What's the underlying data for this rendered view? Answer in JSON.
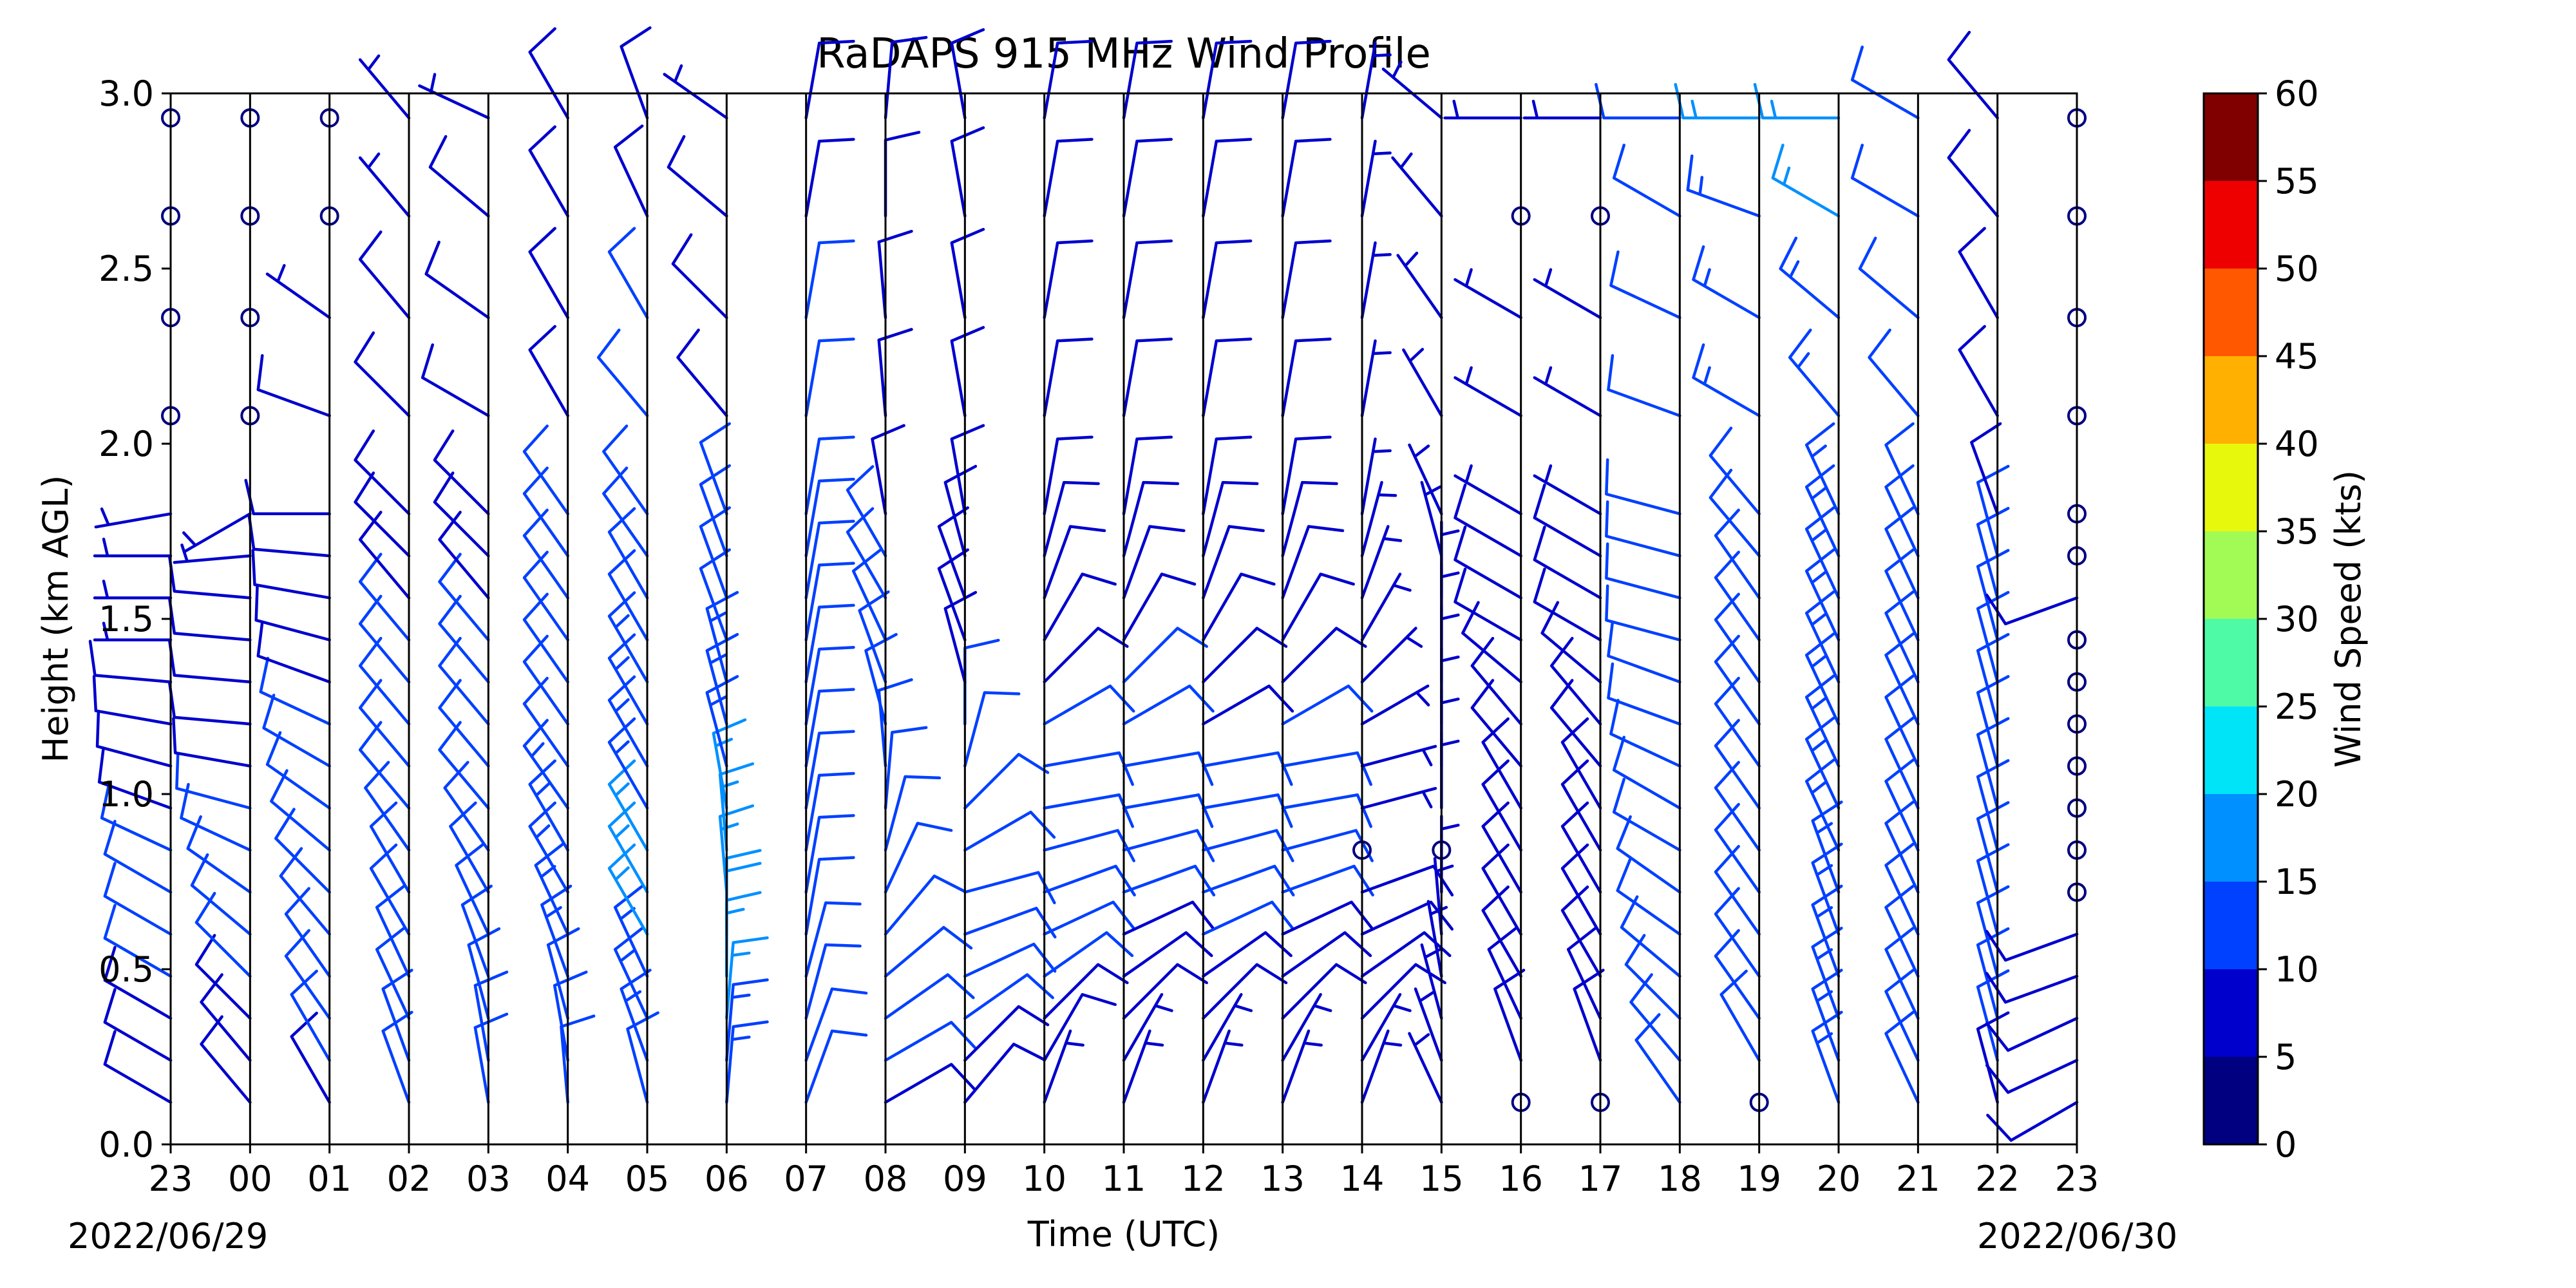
{
  "chart_data": {
    "type": "wind-barb-profile",
    "title": "RaDAPS 915 MHz Wind Profile",
    "xlabel": "Time (UTC)",
    "ylabel": "Height (km AGL)",
    "x_ticks": [
      "23",
      "00",
      "01",
      "02",
      "03",
      "04",
      "05",
      "06",
      "07",
      "08",
      "09",
      "10",
      "11",
      "12",
      "13",
      "14",
      "15",
      "16",
      "17",
      "18",
      "19",
      "20",
      "21",
      "22",
      "23"
    ],
    "start_date_label": "2022/06/29",
    "end_date_label": "2022/06/30",
    "ylim": [
      0,
      3.0
    ],
    "y_ticks": [
      "0.0",
      "0.5",
      "1.0",
      "1.5",
      "2.0",
      "2.5",
      "3.0"
    ],
    "colorbar": {
      "label": "Wind Speed (kts)",
      "bounds": [
        0,
        5,
        10,
        15,
        20,
        25,
        30,
        35,
        40,
        45,
        50,
        55,
        60
      ],
      "tick_labels": [
        "0",
        "5",
        "10",
        "15",
        "20",
        "25",
        "30",
        "35",
        "40",
        "45",
        "50",
        "55",
        "60"
      ],
      "colors": [
        "#000080",
        "#0000cd",
        "#0040ff",
        "#0090ff",
        "#00e4f8",
        "#4ffaa7",
        "#a2fb54",
        "#e8f80c",
        "#ffb000",
        "#ff5800",
        "#ee0000",
        "#800000"
      ]
    },
    "heights_km": [
      0.12,
      0.24,
      0.36,
      0.48,
      0.6,
      0.72,
      0.84,
      0.96,
      1.08,
      1.2,
      1.32,
      1.44,
      1.56,
      1.68,
      1.8,
      2.08,
      2.36,
      2.65,
      2.93
    ],
    "barb_series": [
      {
        "time": "23",
        "speed": [
          8,
          9,
          9,
          10,
          10,
          10,
          10,
          9,
          9,
          8,
          8,
          7,
          7,
          6,
          6,
          null,
          null,
          null,
          null
        ],
        "dir": [
          300,
          300,
          300,
          300,
          300,
          300,
          295,
          290,
          285,
          280,
          275,
          270,
          270,
          270,
          260,
          null,
          null,
          null,
          null
        ]
      },
      {
        "time": "00",
        "speed": [
          9,
          9,
          9,
          10,
          10,
          10,
          10,
          10,
          9,
          9,
          9,
          8,
          8,
          7,
          6,
          null,
          null,
          null,
          null
        ],
        "dir": [
          320,
          320,
          315,
          315,
          310,
          305,
          295,
          285,
          280,
          275,
          275,
          275,
          275,
          265,
          240,
          null,
          null,
          null,
          null
        ]
      },
      {
        "time": "01",
        "speed": [
          9,
          10,
          10,
          10,
          11,
          10,
          10,
          10,
          10,
          10,
          9,
          9,
          8,
          8,
          8,
          8,
          7,
          null,
          null
        ],
        "dir": [
          330,
          330,
          325,
          325,
          320,
          315,
          310,
          305,
          300,
          295,
          290,
          285,
          280,
          275,
          270,
          290,
          305,
          null,
          null
        ]
      },
      {
        "time": "02",
        "speed": [
          11,
          12,
          12,
          12,
          12,
          12,
          12,
          12,
          11,
          11,
          10,
          10,
          9,
          9,
          8,
          8,
          8,
          7,
          7
        ],
        "dir": [
          340,
          340,
          335,
          335,
          330,
          330,
          325,
          320,
          320,
          320,
          320,
          320,
          320,
          315,
          315,
          315,
          320,
          320,
          320
        ]
      },
      {
        "time": "03",
        "speed": [
          10,
          11,
          12,
          12,
          12,
          12,
          12,
          12,
          11,
          11,
          10,
          10,
          9,
          9,
          8,
          8,
          8,
          8,
          7
        ],
        "dir": [
          350,
          350,
          345,
          340,
          335,
          330,
          325,
          320,
          320,
          320,
          320,
          320,
          320,
          315,
          315,
          300,
          305,
          310,
          295
        ]
      },
      {
        "time": "04",
        "speed": [
          11,
          12,
          12,
          13,
          13,
          13,
          13,
          13,
          12,
          12,
          12,
          11,
          11,
          10,
          10,
          9,
          9,
          8,
          8
        ],
        "dir": [
          355,
          350,
          345,
          340,
          335,
          330,
          330,
          325,
          325,
          325,
          325,
          325,
          325,
          325,
          325,
          330,
          330,
          330,
          330
        ]
      },
      {
        "time": "05",
        "speed": [
          12,
          13,
          14,
          14,
          15,
          15,
          15,
          14,
          14,
          13,
          13,
          12,
          12,
          11,
          11,
          10,
          10,
          9,
          8
        ],
        "dir": [
          345,
          340,
          335,
          335,
          330,
          330,
          330,
          330,
          330,
          330,
          330,
          330,
          330,
          325,
          325,
          320,
          330,
          335,
          340
        ]
      },
      {
        "time": "06",
        "speed": [
          13,
          14,
          16,
          17,
          18,
          17,
          16,
          15,
          14,
          13,
          13,
          12,
          11,
          11,
          10,
          9,
          8,
          8,
          7
        ],
        "dir": [
          5,
          5,
          5,
          0,
          0,
          355,
          355,
          350,
          345,
          345,
          345,
          340,
          340,
          340,
          340,
          320,
          315,
          310,
          305
        ]
      },
      {
        "time": "07",
        "speed": [
          11,
          12,
          12,
          12,
          12,
          12,
          12,
          12,
          11,
          11,
          11,
          11,
          10,
          10,
          10,
          10,
          10,
          9,
          8
        ],
        "dir": [
          20,
          20,
          15,
          15,
          10,
          10,
          10,
          10,
          10,
          10,
          10,
          10,
          10,
          10,
          10,
          10,
          10,
          10,
          10
        ]
      },
      {
        "time": "08",
        "speed": [
          8,
          10,
          11,
          12,
          12,
          12,
          11,
          10,
          10,
          10,
          10,
          10,
          10,
          10,
          9,
          9,
          9,
          8,
          8
        ],
        "dir": [
          60,
          60,
          55,
          50,
          40,
          25,
          15,
          5,
          355,
          345,
          340,
          335,
          330,
          330,
          350,
          355,
          355,
          0,
          5
        ]
      },
      {
        "time": "09",
        "speed": [
          8,
          9,
          11,
          12,
          12,
          12,
          11,
          10,
          10,
          10,
          9,
          9,
          9,
          9,
          8,
          8,
          8,
          8,
          8
        ],
        "dir": [
          40,
          45,
          55,
          65,
          70,
          75,
          60,
          45,
          15,
          0,
          345,
          340,
          340,
          345,
          350,
          350,
          350,
          350,
          350
        ]
      },
      {
        "time": "10",
        "speed": [
          7,
          8,
          9,
          10,
          11,
          11,
          11,
          10,
          10,
          10,
          9,
          9,
          9,
          9,
          8,
          8,
          8,
          8,
          8
        ],
        "dir": [
          20,
          30,
          45,
          55,
          65,
          70,
          75,
          80,
          80,
          60,
          45,
          30,
          20,
          15,
          10,
          10,
          10,
          10,
          10
        ]
      },
      {
        "time": "11",
        "speed": [
          6,
          7,
          8,
          9,
          9,
          10,
          10,
          10,
          10,
          10,
          10,
          9,
          9,
          9,
          8,
          8,
          8,
          8,
          8
        ],
        "dir": [
          20,
          30,
          45,
          55,
          65,
          70,
          75,
          80,
          80,
          60,
          45,
          30,
          20,
          15,
          10,
          10,
          10,
          10,
          10
        ]
      },
      {
        "time": "12",
        "speed": [
          6,
          7,
          8,
          9,
          10,
          10,
          10,
          10,
          10,
          9,
          9,
          9,
          9,
          8,
          8,
          8,
          8,
          8,
          8
        ],
        "dir": [
          20,
          30,
          45,
          55,
          65,
          70,
          75,
          80,
          80,
          60,
          45,
          30,
          20,
          15,
          10,
          10,
          10,
          10,
          10
        ]
      },
      {
        "time": "13",
        "speed": [
          6,
          7,
          8,
          9,
          9,
          10,
          10,
          10,
          10,
          10,
          9,
          9,
          9,
          8,
          8,
          8,
          8,
          8,
          8
        ],
        "dir": [
          20,
          30,
          45,
          55,
          65,
          70,
          75,
          80,
          80,
          60,
          45,
          30,
          20,
          15,
          10,
          10,
          10,
          10,
          10
        ]
      },
      {
        "time": "14",
        "speed": [
          6,
          7,
          8,
          8,
          8,
          8,
          null,
          7,
          7,
          7,
          7,
          7,
          6,
          6,
          6,
          6,
          6,
          6,
          6
        ],
        "dir": [
          20,
          30,
          45,
          55,
          65,
          70,
          null,
          75,
          75,
          60,
          45,
          30,
          20,
          15,
          10,
          10,
          10,
          10,
          10
        ]
      },
      {
        "time": "15",
        "speed": [
          6,
          7,
          7,
          7,
          7,
          7,
          null,
          7,
          7,
          7,
          7,
          7,
          7,
          7,
          7,
          7,
          7,
          7,
          7
        ],
        "dir": [
          335,
          340,
          345,
          350,
          355,
          0,
          null,
          0,
          0,
          0,
          0,
          0,
          0,
          345,
          335,
          330,
          325,
          320,
          310
        ]
      },
      {
        "time": "16",
        "speed": [
          null,
          9,
          9,
          9,
          9,
          9,
          9,
          9,
          8,
          8,
          8,
          8,
          8,
          8,
          7,
          7,
          7,
          null,
          7
        ],
        "dir": [
          null,
          340,
          335,
          330,
          330,
          330,
          330,
          330,
          320,
          320,
          310,
          300,
          300,
          300,
          300,
          300,
          300,
          null,
          270
        ]
      },
      {
        "time": "17",
        "speed": [
          null,
          9,
          9,
          9,
          9,
          9,
          9,
          9,
          8,
          8,
          8,
          8,
          8,
          8,
          7,
          7,
          7,
          null,
          7
        ],
        "dir": [
          null,
          340,
          335,
          330,
          330,
          330,
          330,
          330,
          320,
          320,
          310,
          300,
          300,
          300,
          300,
          300,
          300,
          null,
          270
        ]
      },
      {
        "time": "18",
        "speed": [
          10,
          10,
          10,
          10,
          10,
          10,
          10,
          10,
          10,
          10,
          10,
          10,
          10,
          10,
          10,
          10,
          10,
          10,
          10
        ],
        "dir": [
          325,
          320,
          315,
          310,
          305,
          305,
          300,
          300,
          295,
          290,
          290,
          285,
          285,
          285,
          285,
          290,
          295,
          300,
          270
        ]
      },
      {
        "time": "19",
        "speed": [
          null,
          11,
          12,
          12,
          12,
          12,
          12,
          12,
          12,
          12,
          12,
          12,
          12,
          12,
          12,
          13,
          13,
          14,
          16
        ],
        "dir": [
          null,
          330,
          325,
          325,
          325,
          325,
          325,
          325,
          325,
          325,
          325,
          325,
          325,
          320,
          320,
          300,
          300,
          290,
          270
        ]
      },
      {
        "time": "20",
        "speed": [
          13,
          14,
          14,
          14,
          14,
          14,
          14,
          14,
          14,
          14,
          14,
          14,
          14,
          14,
          14,
          14,
          14,
          15,
          17
        ],
        "dir": [
          340,
          340,
          340,
          340,
          340,
          340,
          335,
          335,
          335,
          335,
          335,
          335,
          335,
          335,
          335,
          320,
          310,
          300,
          270
        ]
      },
      {
        "time": "21",
        "speed": [
          11,
          12,
          12,
          12,
          12,
          12,
          12,
          12,
          12,
          12,
          12,
          12,
          12,
          12,
          12,
          11,
          11,
          11,
          10
        ],
        "dir": [
          335,
          335,
          335,
          335,
          335,
          335,
          335,
          335,
          335,
          335,
          335,
          335,
          335,
          335,
          335,
          320,
          310,
          300,
          300
        ]
      },
      {
        "time": "22",
        "speed": [
          9,
          10,
          10,
          10,
          10,
          10,
          10,
          10,
          10,
          10,
          10,
          10,
          10,
          10,
          9,
          9,
          9,
          9,
          9
        ],
        "dir": [
          345,
          345,
          345,
          345,
          345,
          345,
          345,
          345,
          345,
          345,
          345,
          345,
          345,
          345,
          340,
          330,
          330,
          320,
          320
        ]
      },
      {
        "time": "23",
        "speed": [
          8,
          8,
          8,
          9,
          9,
          null,
          null,
          null,
          null,
          null,
          null,
          null,
          8,
          null,
          null,
          null,
          null,
          null,
          null
        ],
        "dir": [
          240,
          245,
          245,
          250,
          250,
          null,
          null,
          null,
          null,
          null,
          null,
          null,
          250,
          null,
          null,
          null,
          null,
          null,
          null
        ]
      }
    ]
  }
}
